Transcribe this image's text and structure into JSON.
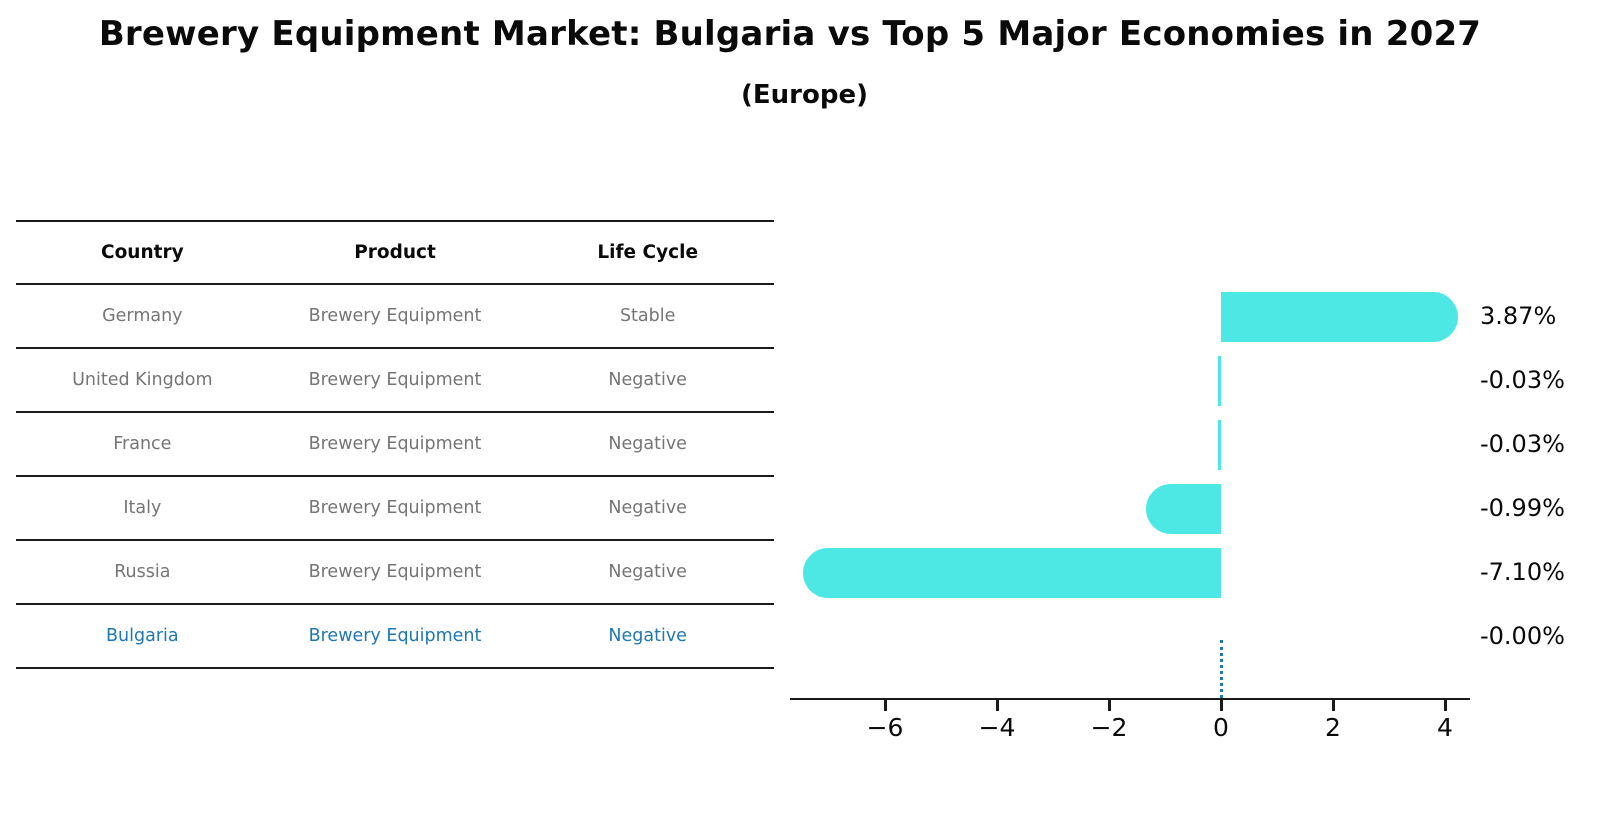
{
  "page": {
    "title": "Brewery Equipment Market: Bulgaria vs Top 5 Major Economies in 2027",
    "subtitle": "(Europe)"
  },
  "table": {
    "headers": [
      "Country",
      "Product",
      "Life Cycle"
    ],
    "rows": [
      {
        "country": "Germany",
        "product": "Brewery Equipment",
        "life_cycle": "Stable",
        "highlight": false
      },
      {
        "country": "United Kingdom",
        "product": "Brewery Equipment",
        "life_cycle": "Negative",
        "highlight": false
      },
      {
        "country": "France",
        "product": "Brewery Equipment",
        "life_cycle": "Negative",
        "highlight": false
      },
      {
        "country": "Italy",
        "product": "Brewery Equipment",
        "life_cycle": "Negative",
        "highlight": false
      },
      {
        "country": "Russia",
        "product": "Brewery Equipment",
        "life_cycle": "Negative",
        "highlight": false
      },
      {
        "country": "Bulgaria",
        "product": "Brewery Equipment",
        "life_cycle": "Negative",
        "highlight": true
      }
    ]
  },
  "chart_data": {
    "type": "bar",
    "orientation": "horizontal",
    "title": "Brewery Equipment Market: Bulgaria vs Top 5 Major Economies in 2027 (Europe)",
    "categories": [
      "Germany",
      "United Kingdom",
      "France",
      "Italy",
      "Russia",
      "Bulgaria"
    ],
    "values": [
      3.87,
      -0.03,
      -0.03,
      -0.99,
      -7.1,
      -0.0
    ],
    "value_labels": [
      "3.87%",
      "-0.03%",
      "-0.03%",
      "-0.99%",
      "-7.10%",
      "-0.00%"
    ],
    "unit": "%",
    "x_ticks": [
      -6,
      -4,
      -2,
      0,
      2,
      4
    ],
    "x_tick_labels": [
      "−6",
      "−4",
      "−2",
      "0",
      "2",
      "4"
    ],
    "xlim": [
      -7.7,
      4.45
    ],
    "grid": false,
    "legend": false,
    "bar_color": "#4DE8E4",
    "highlight_color": "#1F77B4",
    "zero_marker": {
      "category": "Bulgaria",
      "style": "dotted",
      "color": "#1F77B4"
    }
  },
  "colors": {
    "bar_cyan": "#4DE8E4",
    "highlight_blue": "#1F77B4",
    "row_text_gray": "#757575",
    "line_black": "#1a1a1a",
    "text_black": "#0a0a0a"
  }
}
